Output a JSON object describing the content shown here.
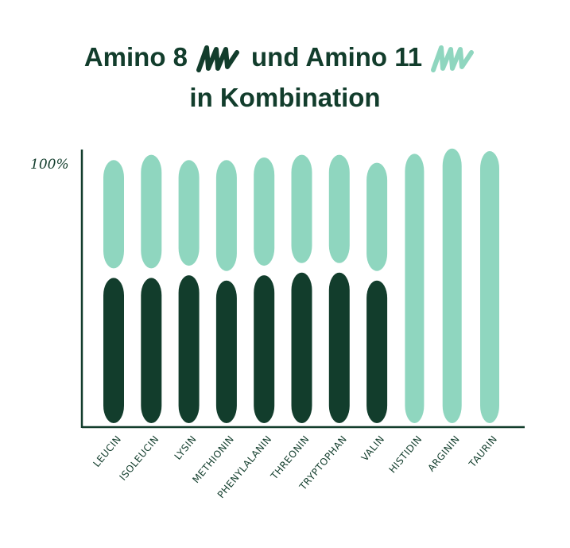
{
  "title": {
    "part1": "Amino 8",
    "part2": "und Amino 11",
    "line2": "in Kombination"
  },
  "colors": {
    "amino8": "#123d2c",
    "amino11": "#8fd6bf",
    "axis": "#123d2c"
  },
  "chart_data": {
    "type": "bar",
    "stacked": true,
    "ylabel_tick": "100%",
    "ylim": [
      0,
      100
    ],
    "categories": [
      "LEUCIN",
      "ISOLEUCIN",
      "LYSIN",
      "METHIONIN",
      "PHENYLALANIN",
      "THREONIN",
      "TRYPTOPHAN",
      "VALIN",
      "HISTIDIN",
      "ARGININ",
      "TAURIN"
    ],
    "series": [
      {
        "key": "amino8",
        "values": [
          55,
          55,
          56,
          54,
          56,
          57,
          57,
          54,
          0,
          0,
          0
        ]
      },
      {
        "key": "amino11",
        "values": [
          41,
          43,
          40,
          42,
          41,
          41,
          41,
          41,
          102,
          104,
          103
        ]
      }
    ]
  }
}
